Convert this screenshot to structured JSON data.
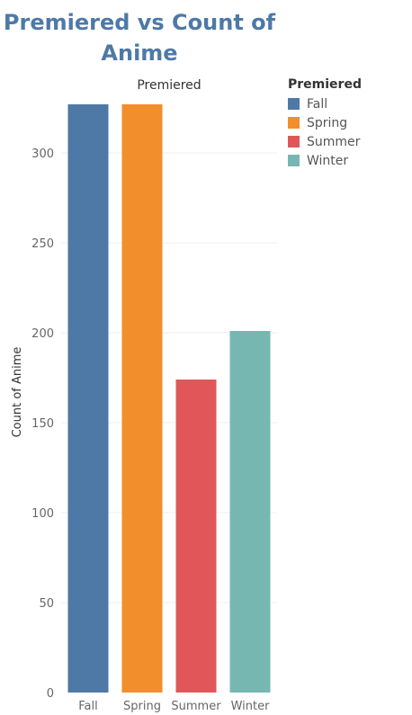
{
  "chart_data": {
    "type": "bar",
    "title": "Premiered vs Count of Anime",
    "column_header": "Premiered",
    "ylabel": "Count of Anime",
    "xlabel": "",
    "categories": [
      "Fall",
      "Spring",
      "Summer",
      "Winter"
    ],
    "values": [
      327,
      327,
      174,
      201
    ],
    "colors": [
      "#4e79a7",
      "#f28e2b",
      "#e15759",
      "#76b7b2"
    ],
    "ylim": [
      0,
      330
    ],
    "yticks": [
      0,
      50,
      100,
      150,
      200,
      250,
      300
    ],
    "grid": true,
    "legend": {
      "title": "Premiered",
      "placement": "right",
      "items": [
        "Fall",
        "Spring",
        "Summer",
        "Winter"
      ]
    }
  }
}
